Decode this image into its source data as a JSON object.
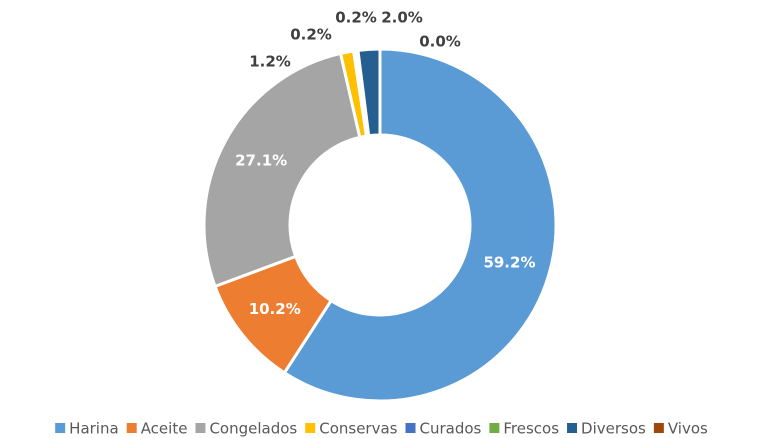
{
  "chart_data": {
    "type": "donut",
    "categories": [
      "Harina",
      "Aceite",
      "Congelados",
      "Conservas",
      "Curados",
      "Frescos",
      "Diversos",
      "Vivos"
    ],
    "values": [
      59.2,
      10.2,
      27.1,
      1.2,
      0.2,
      0.2,
      2.0,
      0.0
    ],
    "value_labels": [
      "59.2%",
      "10.2%",
      "27.1%",
      "1.2%",
      "0.2%",
      "0.2%",
      "2.0%",
      "0.0%"
    ],
    "colors": [
      "#5b9bd5",
      "#ed7d31",
      "#a5a5a5",
      "#ffc000",
      "#4472c4",
      "#70ad47",
      "#255e91",
      "#9e480e"
    ],
    "legend": "bottom"
  }
}
